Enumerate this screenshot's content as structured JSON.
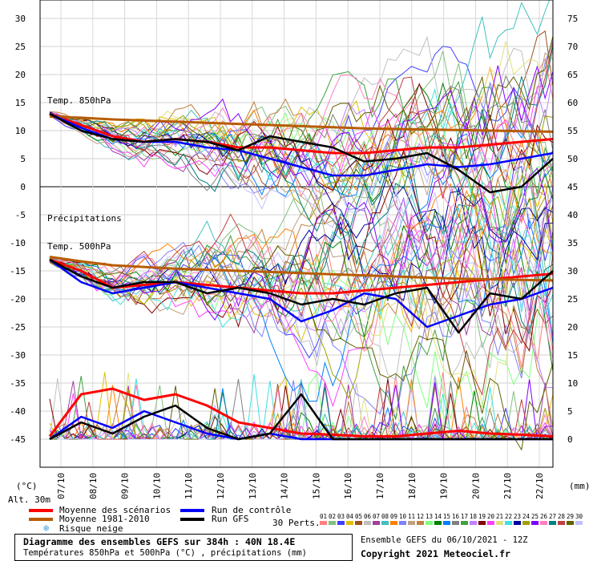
{
  "chart_data": {
    "type": "line",
    "title": "Diagramme des ensembles GEFS sur 384h : 40N 18.4E",
    "subtitle": "Températures 850hPa et 500hPa (°C) , précipitations (mm)",
    "run_info": "Ensemble GEFS du 06/10/2021 - 12Z",
    "copyright": "Copyright 2021 Meteociel.fr",
    "altitude": "Alt. 30m",
    "left_axis_unit": "(°C)",
    "right_axis_unit": "(mm)",
    "left_ticks": [
      30,
      25,
      20,
      15,
      10,
      5,
      0,
      -5,
      -10,
      -15,
      -20,
      -25,
      -30,
      -35,
      -40,
      -45
    ],
    "right_ticks": [
      75,
      70,
      65,
      60,
      55,
      50,
      45,
      40,
      35,
      30,
      25,
      20,
      15,
      10,
      5,
      0
    ],
    "x_labels": [
      "07/10",
      "08/10",
      "09/10",
      "10/10",
      "11/10",
      "12/10",
      "13/10",
      "14/10",
      "15/10",
      "16/10",
      "17/10",
      "18/10",
      "19/10",
      "20/10",
      "21/10",
      "22/10"
    ],
    "panel_labels": {
      "t850": "Temp. 850hPa",
      "precip": "Précipitations",
      "t500": "Temp. 500hPa"
    },
    "legend": {
      "mean": {
        "label": "Moyenne des scénarios",
        "color": "#ff0000"
      },
      "clim": {
        "label": "Moyenne 1981-2010",
        "color": "#b85c00"
      },
      "snow": {
        "label": "Risque neige",
        "icon": "snowflake-icon"
      },
      "control": {
        "label": "Run de contrôle",
        "color": "#0000ff"
      },
      "gfs": {
        "label": "Run GFS",
        "color": "#000000"
      },
      "perts_label": "30 Perts.",
      "pert_ids": [
        "01",
        "02",
        "03",
        "04",
        "05",
        "06",
        "07",
        "08",
        "09",
        "10",
        "11",
        "12",
        "13",
        "14",
        "15",
        "16",
        "17",
        "18",
        "19",
        "20",
        "21",
        "22",
        "23",
        "24",
        "25",
        "26",
        "27",
        "28",
        "29",
        "30"
      ],
      "pert_colors": [
        "#ff8080",
        "#80c080",
        "#4040ff",
        "#e0c000",
        "#a05020",
        "#c0c0c0",
        "#a040a0",
        "#40c0c0",
        "#ff8000",
        "#8080ff",
        "#c0a080",
        "#c08040",
        "#80ff80",
        "#008000",
        "#0080ff",
        "#808080",
        "#40a040",
        "#c080ff",
        "#800000",
        "#ff40ff",
        "#e0e080",
        "#40e0e0",
        "#0000a0",
        "#a0a000",
        "#8000ff",
        "#ff80c0",
        "#008080",
        "#c04040",
        "#606000",
        "#c0c0ff"
      ]
    },
    "series": [
      {
        "name": "Moyenne des scénarios",
        "panel": "t850",
        "values": [
          13,
          11,
          9,
          8,
          8.5,
          8,
          7,
          7,
          6.5,
          6,
          6,
          6.5,
          7,
          7,
          7.5,
          8,
          8.5
        ]
      },
      {
        "name": "Moyenne 1981-2010",
        "panel": "t850",
        "values": [
          12.5,
          12.3,
          12,
          11.8,
          11.6,
          11.4,
          11.2,
          11,
          10.8,
          10.6,
          10.4,
          10.3,
          10.2,
          10.1,
          10,
          9.9,
          9.8
        ]
      },
      {
        "name": "Run de contrôle",
        "panel": "t850",
        "values": [
          13,
          10.5,
          8.5,
          8,
          8,
          7,
          6.5,
          5,
          3.5,
          2,
          2,
          3,
          4,
          3.5,
          4,
          5,
          6
        ]
      },
      {
        "name": "Run GFS",
        "panel": "t850",
        "values": [
          13,
          10,
          8.5,
          8,
          8.5,
          8,
          6.5,
          9,
          8,
          7,
          4.5,
          5,
          6,
          3,
          -1,
          0,
          5
        ]
      },
      {
        "name": "Moyenne des scénarios",
        "panel": "t500",
        "values": [
          -13,
          -15,
          -18,
          -17.5,
          -17,
          -17.5,
          -18,
          -18.5,
          -19,
          -19,
          -18.5,
          -18,
          -17.5,
          -17,
          -16.5,
          -16,
          -15.5
        ]
      },
      {
        "name": "Moyenne 1981-2010",
        "panel": "t500",
        "values": [
          -12.5,
          -13.3,
          -14,
          -14.3,
          -14.6,
          -14.8,
          -15,
          -15.2,
          -15.4,
          -15.6,
          -15.8,
          -16,
          -16.2,
          -16.4,
          -16.5,
          -16.6,
          -16.7
        ]
      },
      {
        "name": "Run de contrôle",
        "panel": "t500",
        "values": [
          -13,
          -17,
          -19,
          -18,
          -17,
          -18,
          -19,
          -20,
          -24,
          -22,
          -19,
          -20,
          -25,
          -23,
          -21,
          -20,
          -18
        ]
      },
      {
        "name": "Run GFS",
        "panel": "t500",
        "values": [
          -13,
          -16,
          -18,
          -17,
          -17,
          -19,
          -18,
          -19,
          -21,
          -20,
          -21,
          -19,
          -18,
          -26,
          -19,
          -20,
          -15
        ]
      },
      {
        "name": "Moyenne des scénarios",
        "panel": "precip",
        "values": [
          0.5,
          8,
          9,
          7,
          8,
          6,
          3,
          2,
          1,
          0.8,
          0.5,
          0.5,
          1,
          1.5,
          1,
          0.8,
          0.5
        ]
      },
      {
        "name": "Run de contrôle",
        "panel": "precip",
        "values": [
          0,
          4,
          2,
          5,
          3,
          1,
          0,
          1,
          0,
          0,
          0,
          0,
          0,
          0,
          0,
          0,
          0
        ]
      },
      {
        "name": "Run GFS",
        "panel": "precip",
        "values": [
          0,
          3,
          1,
          4,
          6,
          2,
          0,
          1,
          8,
          0,
          0,
          0,
          0,
          0,
          0,
          0,
          0
        ]
      }
    ]
  }
}
